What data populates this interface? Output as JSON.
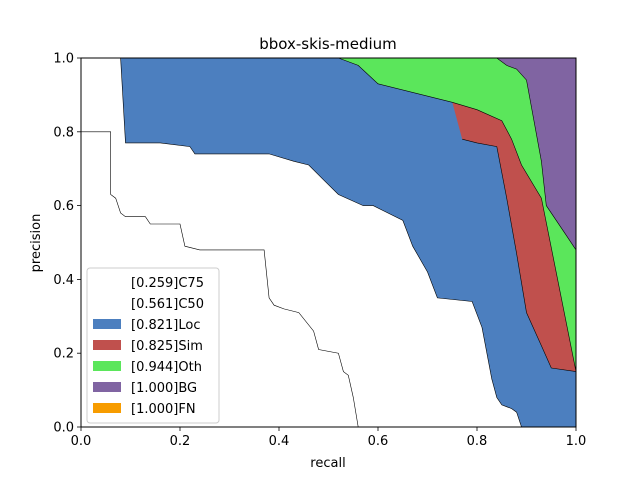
{
  "chart_data": {
    "type": "area",
    "title": "bbox-skis-medium",
    "xlabel": "recall",
    "ylabel": "precision",
    "xlim": [
      0,
      1
    ],
    "ylim": [
      0,
      1
    ],
    "xticks": [
      "0.0",
      "0.2",
      "0.4",
      "0.6",
      "0.8",
      "1.0"
    ],
    "yticks": [
      "0.0",
      "0.2",
      "0.4",
      "0.6",
      "0.8",
      "1.0"
    ],
    "legend_position": "lower left",
    "legend": [
      {
        "label": "[0.259]C75",
        "color": "#ffffff"
      },
      {
        "label": "[0.561]C50",
        "color": "#ffffff"
      },
      {
        "label": "[0.821]Loc",
        "color": "#4c7fbf"
      },
      {
        "label": "[0.825]Sim",
        "color": "#c0504d"
      },
      {
        "label": "[0.944]Oth",
        "color": "#5be65b"
      },
      {
        "label": "[1.000]BG",
        "color": "#8064a2"
      },
      {
        "label": "[1.000]FN",
        "color": "#f79c00"
      }
    ],
    "series": [
      {
        "name": "[0.259]C75",
        "x": [
          0,
          0.06,
          0.06,
          0.07,
          0.08,
          0.09,
          0.13,
          0.14,
          0.2,
          0.21,
          0.24,
          0.37,
          0.38,
          0.39,
          0.41,
          0.44,
          0.47,
          0.48,
          0.52,
          0.53,
          0.54,
          0.55,
          0.56
        ],
        "y": [
          0.8,
          0.8,
          0.63,
          0.62,
          0.58,
          0.57,
          0.57,
          0.55,
          0.55,
          0.49,
          0.48,
          0.48,
          0.35,
          0.33,
          0.32,
          0.31,
          0.26,
          0.21,
          0.2,
          0.15,
          0.14,
          0.08,
          0.0
        ]
      },
      {
        "name": "[0.561]C50",
        "x": [
          0,
          0.08
        ],
        "y": [
          1.0,
          1.0
        ]
      },
      {
        "name": "[0.821]Loc",
        "x": [
          0.08,
          0.09,
          0.16,
          0.22,
          0.23,
          0.38,
          0.43,
          0.46,
          0.49,
          0.52,
          0.57,
          0.59,
          0.65,
          0.67,
          0.7,
          0.72,
          0.79,
          0.81,
          0.83,
          0.84,
          0.85,
          0.87,
          0.88,
          0.89,
          1.0
        ],
        "y": [
          1.0,
          0.77,
          0.77,
          0.76,
          0.74,
          0.74,
          0.72,
          0.71,
          0.67,
          0.63,
          0.6,
          0.6,
          0.56,
          0.49,
          0.42,
          0.35,
          0.34,
          0.27,
          0.13,
          0.08,
          0.06,
          0.05,
          0.04,
          0.0,
          0.0
        ]
      },
      {
        "name": "[0.825]Sim",
        "x": [
          0.77,
          0.8,
          0.84,
          0.86,
          0.88,
          0.9,
          0.93,
          0.95,
          1.0
        ],
        "y": [
          0.78,
          0.77,
          0.76,
          0.62,
          0.47,
          0.31,
          0.22,
          0.16,
          0.15
        ]
      },
      {
        "name": "[0.944]Oth",
        "x": [
          0.13,
          0.52,
          0.56,
          0.6,
          0.75,
          0.8,
          0.85,
          0.87,
          0.89,
          0.93,
          1.0
        ],
        "y": [
          1.0,
          1.0,
          0.98,
          0.93,
          0.88,
          0.86,
          0.83,
          0.78,
          0.71,
          0.62,
          0.15
        ]
      },
      {
        "name": "[1.000]BG",
        "x": [
          0.53,
          0.84,
          0.86,
          0.88,
          0.9,
          0.93,
          0.94,
          0.98,
          1.0
        ],
        "y": [
          1.0,
          1.0,
          0.98,
          0.97,
          0.94,
          0.72,
          0.6,
          0.52,
          0.48
        ]
      },
      {
        "name": "[1.000]FN",
        "x": [
          0.99,
          1.0
        ],
        "y": [
          0.0,
          0.0
        ]
      }
    ]
  }
}
